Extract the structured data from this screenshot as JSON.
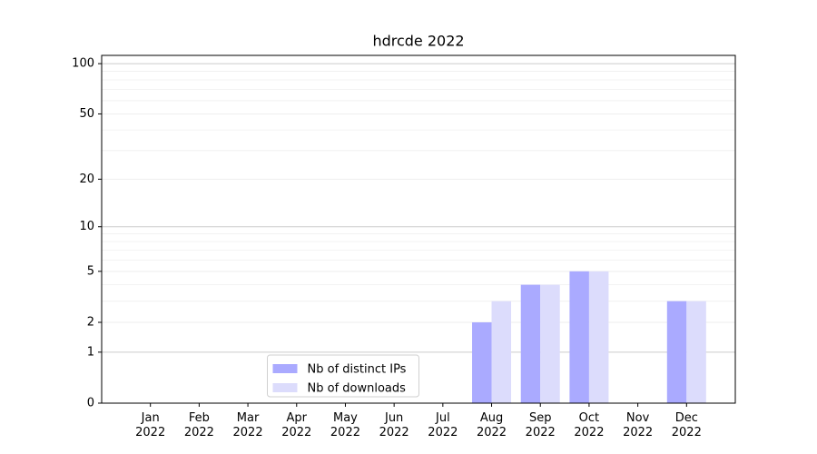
{
  "chart_data": {
    "type": "bar",
    "title": "hdrcde 2022",
    "categories": [
      "Jan\n2022",
      "Feb\n2022",
      "Mar\n2022",
      "Apr\n2022",
      "May\n2022",
      "Jun\n2022",
      "Jul\n2022",
      "Aug\n2022",
      "Sep\n2022",
      "Oct\n2022",
      "Nov\n2022",
      "Dec\n2022"
    ],
    "series": [
      {
        "name": "Nb of distinct IPs",
        "color": "#aaaaff",
        "values": [
          0,
          0,
          0,
          0,
          0,
          0,
          0,
          2,
          4,
          5,
          0,
          3
        ]
      },
      {
        "name": "Nb of downloads",
        "color": "#dcdcfc",
        "values": [
          0,
          0,
          0,
          0,
          0,
          0,
          0,
          3,
          4,
          5,
          0,
          3
        ]
      }
    ],
    "yscale": "log1p",
    "ylim": [
      0,
      112
    ],
    "yticks": [
      0,
      1,
      2,
      5,
      10,
      20,
      50,
      100
    ],
    "yminor": [
      3,
      4,
      6,
      7,
      8,
      9,
      30,
      40,
      60,
      70,
      80,
      90
    ],
    "grid": true,
    "legend": "lower center"
  }
}
